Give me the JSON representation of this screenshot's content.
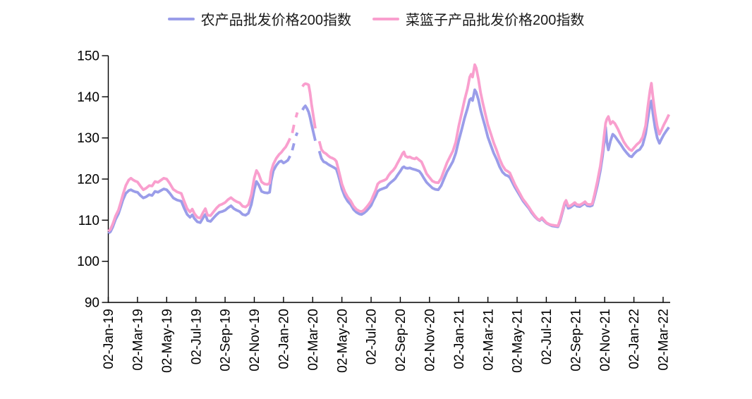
{
  "chart_data": {
    "type": "line",
    "title": "",
    "xlabel": "",
    "ylabel": "",
    "ylim": [
      90,
      150
    ],
    "yticks": [
      90,
      100,
      110,
      120,
      130,
      140,
      150
    ],
    "grid": false,
    "legend_position": "top",
    "x_unit": "months_since_2019-01-02 (ticks every 2 months, line breaks = missing holiday data)",
    "categories": [
      "02-Jan-19",
      "02-Mar-19",
      "02-May-19",
      "02-Jul-19",
      "02-Sep-19",
      "02-Nov-19",
      "02-Jan-20",
      "02-Mar-20",
      "02-May-20",
      "02-Jul-20",
      "02-Sep-20",
      "02-Nov-20",
      "02-Jan-21",
      "02-Mar-21",
      "02-May-21",
      "02-Jul-21",
      "02-Sep-21",
      "02-Nov-21",
      "02-Jan-22",
      "02-Mar-22"
    ],
    "x": [
      0,
      0.15,
      0.3,
      0.5,
      0.7,
      0.85,
      1.0,
      1.2,
      1.4,
      1.55,
      1.7,
      1.85,
      2.0,
      2.2,
      2.4,
      2.6,
      2.8,
      3.0,
      3.2,
      3.4,
      3.6,
      3.8,
      4.0,
      4.2,
      4.45,
      4.7,
      5.0,
      5.2,
      5.4,
      5.6,
      5.75,
      5.9,
      6.1,
      6.3,
      6.5,
      6.65,
      6.8,
      7.0,
      7.2,
      7.4,
      7.6,
      7.8,
      8.0,
      8.2,
      8.4,
      8.6,
      8.8,
      9.0,
      9.2,
      9.4,
      9.6,
      9.8,
      10.0,
      10.15,
      10.3,
      10.5,
      10.7,
      10.9,
      11.05,
      11.15,
      11.3,
      11.5,
      11.7,
      11.85,
      12.0,
      12.15,
      12.3,
      12.45,
      12.5,
      12.6,
      12.72,
      12.78,
      12.85,
      12.95,
      13.05,
      13.15,
      13.3,
      13.4,
      13.5,
      13.62,
      13.72,
      13.82,
      13.92,
      14.05,
      14.18,
      14.3,
      14.45,
      14.6,
      14.75,
      14.9,
      15.05,
      15.2,
      15.35,
      15.5,
      15.62,
      15.75,
      15.88,
      16.0,
      16.2,
      16.4,
      16.6,
      16.8,
      17.0,
      17.2,
      17.35,
      17.5,
      17.7,
      17.85,
      18.0,
      18.15,
      18.3,
      18.45,
      18.6,
      18.75,
      18.9,
      19.05,
      19.2,
      19.35,
      19.5,
      19.65,
      19.8,
      20.0,
      20.15,
      20.25,
      20.35,
      20.5,
      20.65,
      20.8,
      21.0,
      21.1,
      21.3,
      21.45,
      21.6,
      21.8,
      22.0,
      22.2,
      22.4,
      22.6,
      22.8,
      23.0,
      23.2,
      23.4,
      23.6,
      23.8,
      24.0,
      24.2,
      24.4,
      24.6,
      24.75,
      24.85,
      24.95,
      25.1,
      25.2,
      25.35,
      25.5,
      25.65,
      25.8,
      26.0,
      26.2,
      26.4,
      26.6,
      26.8,
      27.0,
      27.2,
      27.35,
      27.5,
      27.7,
      27.85,
      28.0,
      28.2,
      28.4,
      28.6,
      28.8,
      29.0,
      29.2,
      29.4,
      29.55,
      29.7,
      29.85,
      30.0,
      30.2,
      30.4,
      30.6,
      30.8,
      30.95,
      31.1,
      31.25,
      31.35,
      31.5,
      31.65,
      31.8,
      31.95,
      32.1,
      32.3,
      32.5,
      32.65,
      32.8,
      33.0,
      33.15,
      33.3,
      33.5,
      33.7,
      33.85,
      33.95,
      34.06,
      34.15,
      34.25,
      34.4,
      34.55,
      34.7,
      34.9,
      35.1,
      35.3,
      35.5,
      35.7,
      35.85,
      36.0,
      36.2,
      36.4,
      36.6,
      36.8,
      36.95,
      37.1,
      37.2,
      37.3,
      37.45,
      37.6,
      37.75,
      37.9,
      38.05,
      38.2,
      38.4
    ],
    "series": [
      {
        "name": "农产品批发价格200指数",
        "color": "#9a9de9",
        "values": [
          106.8,
          107.2,
          108.3,
          110.2,
          111.6,
          113.2,
          114.9,
          116.5,
          117.2,
          117.4,
          117.1,
          116.9,
          116.8,
          116.0,
          115.4,
          115.7,
          116.2,
          116.0,
          117.0,
          116.8,
          117.2,
          117.6,
          117.4,
          116.6,
          115.4,
          114.9,
          114.6,
          112.9,
          111.4,
          110.7,
          111.3,
          110.4,
          109.6,
          109.4,
          110.6,
          111.4,
          109.9,
          109.7,
          110.5,
          111.3,
          111.9,
          112.1,
          112.4,
          113.0,
          113.5,
          112.8,
          112.4,
          112.1,
          111.4,
          111.2,
          111.7,
          113.8,
          117.5,
          119.4,
          118.6,
          117.0,
          116.7,
          116.6,
          116.8,
          119.5,
          122.0,
          123.3,
          124.2,
          124.4,
          123.9,
          124.2,
          124.6,
          125.6,
          null,
          127.0,
          128.7,
          null,
          130.5,
          131.3,
          null,
          null,
          136.8,
          137.4,
          137.8,
          137.1,
          136.3,
          135.0,
          133.3,
          131.3,
          129.3,
          null,
          126.8,
          125.0,
          124.2,
          124.0,
          123.6,
          123.3,
          123.0,
          122.7,
          122.4,
          121.0,
          119.3,
          117.6,
          115.8,
          114.6,
          113.8,
          112.6,
          111.9,
          111.5,
          111.4,
          111.7,
          112.3,
          112.9,
          113.6,
          114.8,
          115.8,
          117.0,
          117.4,
          117.6,
          117.8,
          118.0,
          118.7,
          119.2,
          119.6,
          120.1,
          120.9,
          121.9,
          122.8,
          123.0,
          122.7,
          122.6,
          122.7,
          122.5,
          122.3,
          122.2,
          121.9,
          121.2,
          120.3,
          119.2,
          118.5,
          117.8,
          117.5,
          117.4,
          118.4,
          120.1,
          121.8,
          123.0,
          124.3,
          126.3,
          129.3,
          132.0,
          134.8,
          137.2,
          139.3,
          139.6,
          139.1,
          141.7,
          141.1,
          139.3,
          136.8,
          134.8,
          132.9,
          130.2,
          128.2,
          126.3,
          124.8,
          123.0,
          121.7,
          121.0,
          120.8,
          120.4,
          119.0,
          118.0,
          117.1,
          115.9,
          114.7,
          113.8,
          112.9,
          111.8,
          110.9,
          110.2,
          109.9,
          110.4,
          109.8,
          109.3,
          108.9,
          108.6,
          108.5,
          108.4,
          109.8,
          111.8,
          113.8,
          114.3,
          112.9,
          113.1,
          113.5,
          113.9,
          113.4,
          113.3,
          113.8,
          114.1,
          113.5,
          113.4,
          113.6,
          115.5,
          118.5,
          122.0,
          125.5,
          128.5,
          132.6,
          129.0,
          127.1,
          129.3,
          130.9,
          130.4,
          129.4,
          128.4,
          127.3,
          126.4,
          125.6,
          125.4,
          126.1,
          126.8,
          127.2,
          128.3,
          131.0,
          134.5,
          138.0,
          139.0,
          136.0,
          132.5,
          130.0,
          128.7,
          129.8,
          130.8,
          131.6,
          132.6
        ]
      },
      {
        "name": "菜篮子产品批发价格200指数",
        "color": "#f99fce",
        "values": [
          107.3,
          107.8,
          109.0,
          111.0,
          112.5,
          114.3,
          116.2,
          118.4,
          119.8,
          120.2,
          119.8,
          119.5,
          119.3,
          118.3,
          117.4,
          117.8,
          118.4,
          118.3,
          119.4,
          119.2,
          119.7,
          120.2,
          120.0,
          119.0,
          117.5,
          116.9,
          116.5,
          114.6,
          112.8,
          112.0,
          112.7,
          111.6,
          110.7,
          110.5,
          111.9,
          112.8,
          111.2,
          111.1,
          112.0,
          112.9,
          113.6,
          113.9,
          114.3,
          115.0,
          115.5,
          114.9,
          114.5,
          114.2,
          113.4,
          113.2,
          113.8,
          116.2,
          120.3,
          122.1,
          121.2,
          119.3,
          118.8,
          118.7,
          119.0,
          121.8,
          123.6,
          125.0,
          126.0,
          126.5,
          127.2,
          127.8,
          128.8,
          129.9,
          null,
          131.2,
          133.2,
          null,
          135.0,
          136.2,
          null,
          null,
          142.5,
          143.0,
          143.2,
          143.1,
          142.9,
          141.0,
          138.2,
          135.2,
          132.3,
          null,
          129.2,
          127.2,
          126.5,
          126.2,
          125.7,
          125.3,
          125.1,
          124.8,
          124.3,
          122.5,
          120.6,
          118.8,
          116.9,
          115.6,
          114.7,
          113.4,
          112.6,
          112.2,
          112.1,
          112.4,
          113.2,
          113.9,
          114.7,
          116.0,
          117.2,
          118.8,
          119.3,
          119.5,
          119.7,
          120.0,
          120.9,
          121.6,
          122.1,
          122.8,
          123.8,
          125.1,
          126.2,
          126.6,
          125.6,
          125.3,
          125.4,
          125.1,
          124.9,
          125.2,
          124.6,
          124.2,
          123.0,
          121.3,
          120.4,
          119.5,
          119.2,
          119.1,
          120.2,
          122.1,
          124.0,
          125.4,
          126.8,
          129.0,
          132.8,
          136.0,
          139.2,
          142.0,
          144.8,
          145.5,
          144.8,
          147.8,
          147.0,
          144.3,
          141.0,
          138.5,
          136.2,
          133.2,
          131.0,
          128.8,
          127.0,
          124.9,
          123.3,
          122.2,
          121.9,
          121.5,
          119.9,
          118.7,
          117.7,
          116.4,
          115.1,
          114.2,
          113.2,
          112.1,
          111.1,
          110.3,
          110.0,
          110.6,
          110.0,
          109.4,
          109.0,
          108.8,
          108.7,
          108.6,
          110.2,
          112.2,
          114.2,
          114.8,
          113.4,
          113.5,
          113.9,
          114.3,
          113.8,
          113.7,
          114.1,
          114.5,
          113.9,
          113.8,
          114.0,
          116.2,
          119.5,
          123.2,
          127.0,
          130.3,
          133.6,
          134.6,
          135.2,
          133.4,
          134.0,
          133.5,
          132.2,
          130.6,
          129.1,
          128.0,
          127.2,
          126.9,
          127.6,
          128.4,
          129.0,
          130.2,
          133.0,
          137.5,
          141.5,
          143.3,
          140.0,
          136.0,
          132.8,
          130.9,
          132.0,
          133.2,
          134.2,
          135.7
        ]
      }
    ]
  }
}
